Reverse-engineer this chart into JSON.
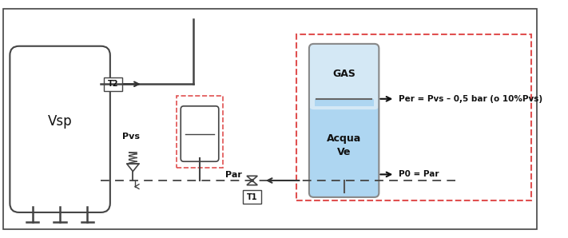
{
  "background_color": "#ffffff",
  "border_color": "#444444",
  "dashed_red_color": "#e05050",
  "gas_fill_color": "#d4e8f5",
  "water_fill_color": "#aed6f1",
  "text_color": "#111111",
  "tank_label": "Vsp",
  "pvs_label": "Pvs",
  "par_label": "Par",
  "t1_label": "T1",
  "t2_label": "T2",
  "gas_label": "GAS",
  "per_formula": "Per = Pvs – 0,5 bar (o 10%Pvs)",
  "p0_formula": "P0 = Par",
  "pipe_color": "#444444",
  "dashed_color": "#555555"
}
